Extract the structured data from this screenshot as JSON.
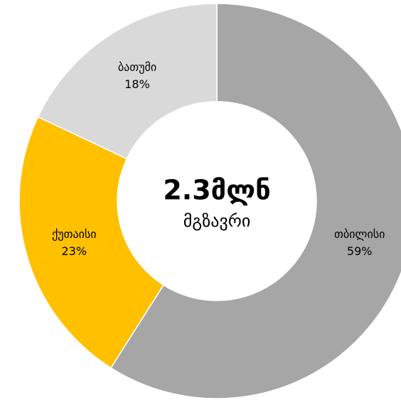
{
  "chart_data": {
    "type": "donut",
    "center_value": "2.3მლნ",
    "center_label": "მგზავრი",
    "categories": [
      "თბილისი",
      "ქუთაისი",
      "ბათუმი"
    ],
    "values": [
      59,
      23,
      18
    ],
    "value_labels": [
      "59%",
      "23%",
      "18%"
    ],
    "colors": [
      "#a6a6a6",
      "#ffc000",
      "#d9d9d9"
    ]
  }
}
